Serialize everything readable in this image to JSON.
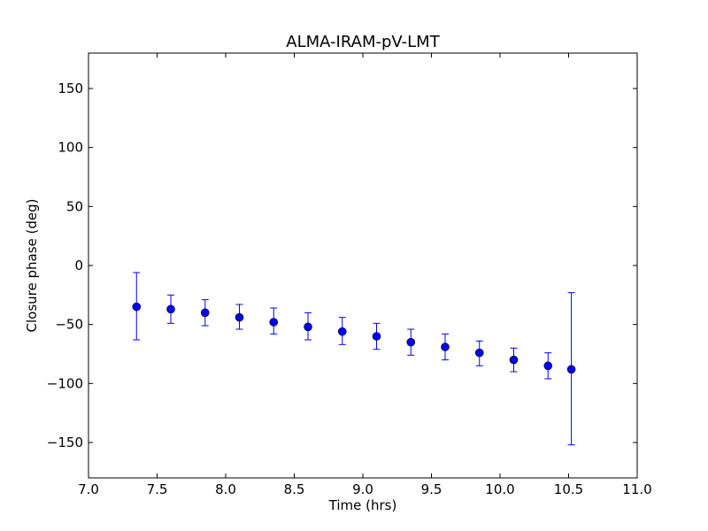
{
  "chart_data": {
    "type": "scatter",
    "title": "ALMA-IRAM-pV-LMT",
    "xlabel": "Time (hrs)",
    "ylabel": "Closure phase (deg)",
    "xlim": [
      7.0,
      11.0
    ],
    "ylim": [
      -180,
      180
    ],
    "xticks": [
      7.0,
      7.5,
      8.0,
      8.5,
      9.0,
      9.5,
      10.0,
      10.5,
      11.0
    ],
    "xtick_labels": [
      "7.0",
      "7.5",
      "8.0",
      "8.5",
      "9.0",
      "9.5",
      "10.0",
      "10.5",
      "11.0"
    ],
    "yticks": [
      -150,
      -100,
      -50,
      0,
      50,
      100,
      150
    ],
    "ytick_labels": [
      "−150",
      "−100",
      "−50",
      "0",
      "50",
      "100",
      "150"
    ],
    "grid": false,
    "marker_color": "#0000ff",
    "series": [
      {
        "x": [
          7.35,
          7.6,
          7.85,
          8.1,
          8.35,
          8.6,
          8.85,
          9.1,
          9.35,
          9.6,
          9.85,
          10.1,
          10.35,
          10.52
        ],
        "y": [
          -35,
          -37,
          -40,
          -44,
          -48,
          -52,
          -56,
          -60,
          -65,
          -69,
          -74,
          -80,
          -85,
          -88
        ],
        "yerr_low": [
          -63,
          -49,
          -51,
          -54,
          -58,
          -63,
          -67,
          -71,
          -76,
          -80,
          -85,
          -90,
          -96,
          -152
        ],
        "yerr_high": [
          -6,
          -25,
          -29,
          -33,
          -36,
          -40,
          -44,
          -49,
          -54,
          -58,
          -64,
          -70,
          -74,
          -23
        ]
      }
    ]
  }
}
